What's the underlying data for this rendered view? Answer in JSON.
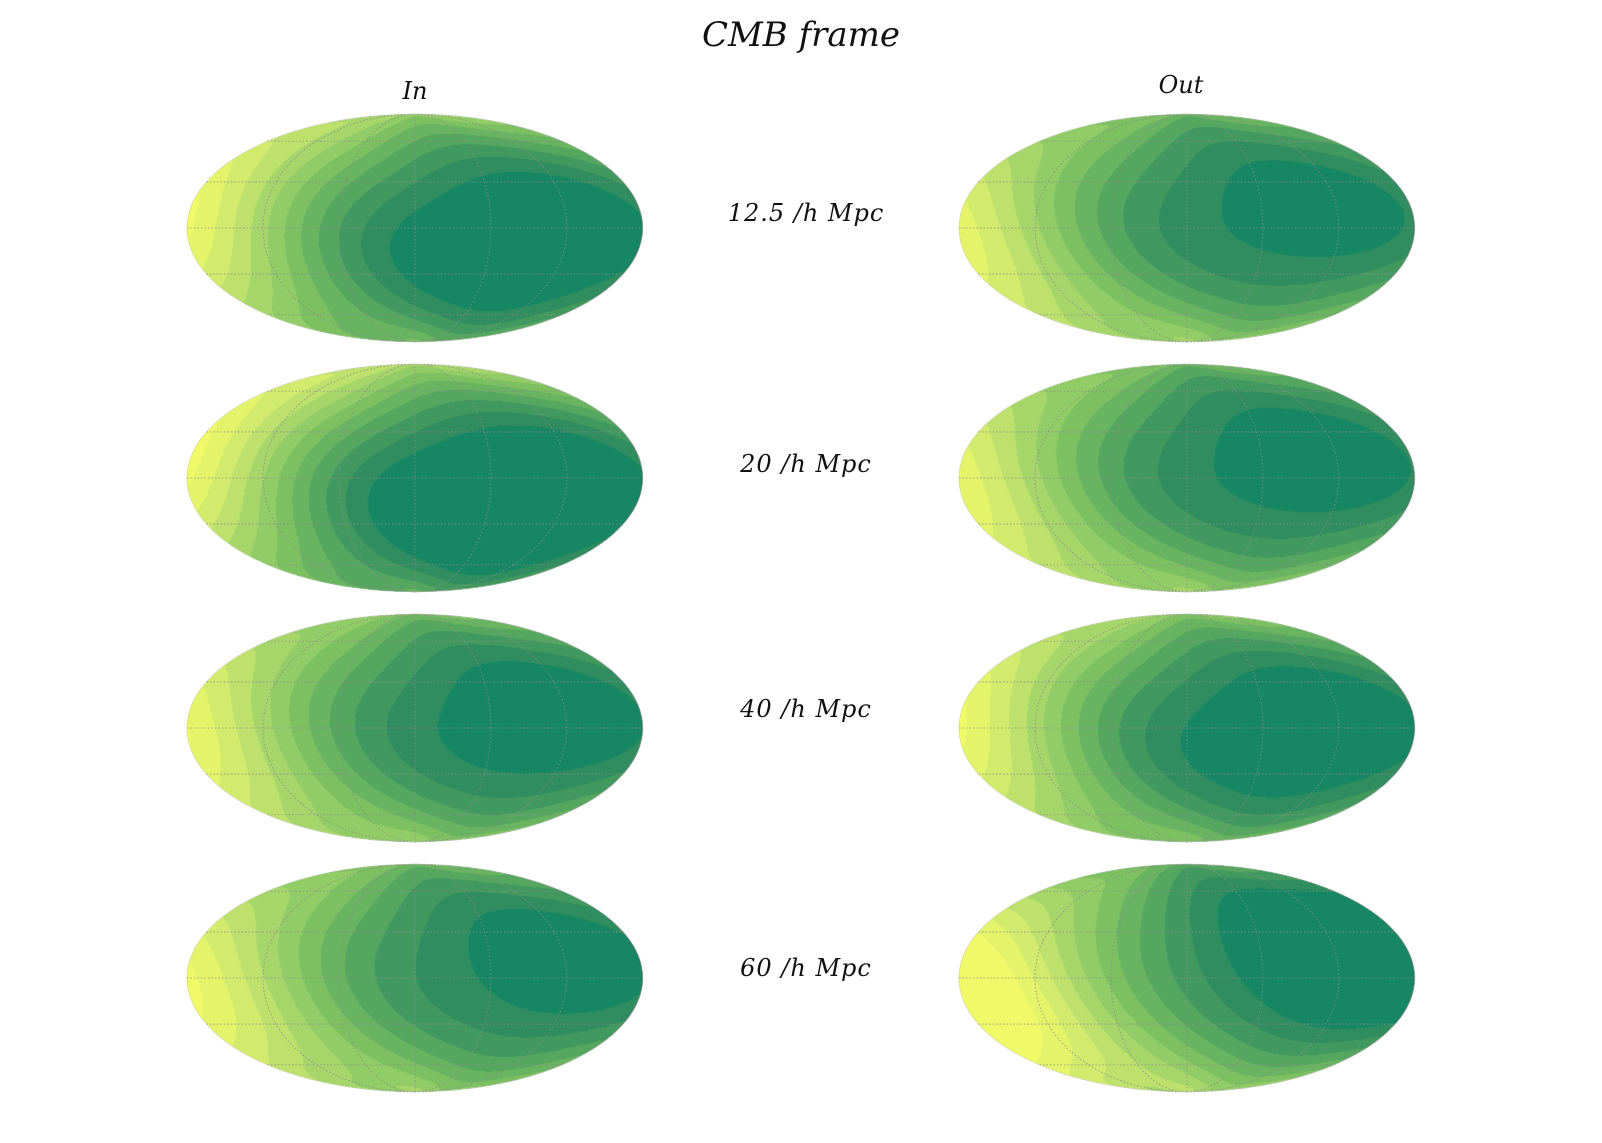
{
  "chart_data": {
    "type": "heatmap",
    "projection": "mollweide",
    "title": "CMB frame",
    "columns": [
      "In",
      "Out"
    ],
    "rows": [
      "12.5 /h Mpc",
      "20 /h Mpc",
      "40 /h Mpc",
      "60 /h Mpc"
    ],
    "grid": true,
    "colormap": [
      "#f0f967",
      "#e4f36a",
      "#d2eb6c",
      "#bde16c",
      "#a6d66a",
      "#92cc66",
      "#7dc062",
      "#68b460",
      "#55a75f",
      "#42995f",
      "#2f8d60",
      "#168762"
    ],
    "panels": [
      {
        "column": "In",
        "row": "12.5 /h Mpc",
        "warm_center": [
          -150,
          35
        ],
        "cold_center": [
          50,
          18
        ],
        "cold_depth": 1.0,
        "warm_height": 1.0
      },
      {
        "column": "Out",
        "row": "12.5 /h Mpc",
        "warm_center": [
          -155,
          25
        ],
        "cold_center": [
          65,
          45
        ],
        "cold_depth": 0.95,
        "warm_height": 1.0
      },
      {
        "column": "In",
        "row": "20 /h Mpc",
        "warm_center": [
          -150,
          30
        ],
        "cold_center": [
          45,
          0
        ],
        "cold_depth": 1.0,
        "warm_height": 1.0
      },
      {
        "column": "Out",
        "row": "20 /h Mpc",
        "warm_center": [
          -150,
          25
        ],
        "cold_center": [
          60,
          45
        ],
        "cold_depth": 0.95,
        "warm_height": 1.0
      },
      {
        "column": "In",
        "row": "40 /h Mpc",
        "warm_center": [
          -150,
          30
        ],
        "cold_center": [
          60,
          40
        ],
        "cold_depth": 1.0,
        "warm_height": 1.0
      },
      {
        "column": "Out",
        "row": "40 /h Mpc",
        "warm_center": [
          -155,
          30
        ],
        "cold_center": [
          60,
          25
        ],
        "cold_depth": 1.0,
        "warm_height": 1.0
      },
      {
        "column": "In",
        "row": "60 /h Mpc",
        "warm_center": [
          -145,
          25
        ],
        "cold_center": [
          70,
          45
        ],
        "cold_depth": 0.95,
        "warm_height": 1.0
      },
      {
        "column": "Out",
        "row": "60 /h Mpc",
        "warm_center": [
          -115,
          -30
        ],
        "cold_center": [
          60,
          0
        ],
        "cold_depth": 0.95,
        "warm_height": 1.0
      }
    ]
  }
}
